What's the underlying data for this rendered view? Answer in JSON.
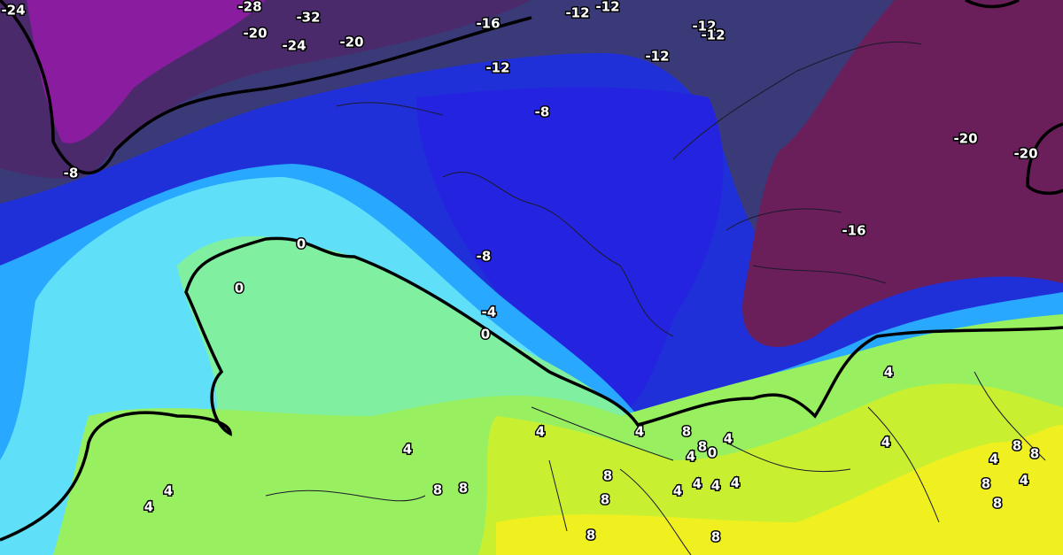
{
  "map": {
    "contour_labels": [
      "-24",
      "-28",
      "-32",
      "-20",
      "-24",
      "-20",
      "-16",
      "-12",
      "-12",
      "-12",
      "-12",
      "-12",
      "-12",
      "-8",
      "-20",
      "-20",
      "-8",
      "0",
      "0",
      "-8",
      "-16",
      "-4",
      "0",
      "4",
      "4",
      "4",
      "8",
      "4",
      "4",
      "8",
      "0",
      "4",
      "8",
      "8",
      "4",
      "4",
      "8",
      "4",
      "4",
      "4",
      "4",
      "8",
      "4",
      "4",
      "8",
      "8",
      "8",
      "4",
      "8",
      "8",
      "8"
    ]
  }
}
